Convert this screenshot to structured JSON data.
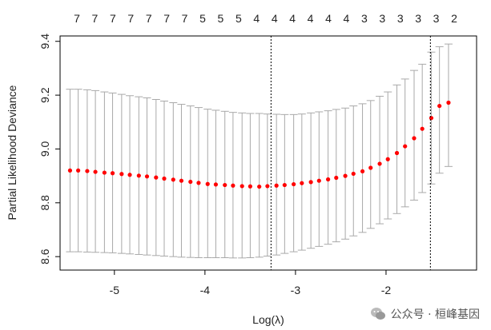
{
  "chart_data": {
    "type": "scatter",
    "title": "",
    "xlabel": "Log(λ)",
    "ylabel": "Partial Likelihood Deviance",
    "xlim": [
      -5.6,
      -1.0
    ],
    "ylim": [
      8.55,
      9.42
    ],
    "x_ticks": [
      -5,
      -4,
      -3,
      -2
    ],
    "x_tick_labels": [
      "-5",
      "-4",
      "-3",
      "-2"
    ],
    "y_ticks": [
      8.6,
      8.8,
      9.0,
      9.2,
      9.4
    ],
    "y_tick_labels": [
      "8.6",
      "8.8",
      "9.0",
      "9.2",
      "9.4"
    ],
    "top_axis_labels": [
      "7",
      "7",
      "7",
      "7",
      "7",
      "7",
      "7",
      "5",
      "5",
      "5",
      "4",
      "4",
      "4",
      "4",
      "4",
      "4",
      "3",
      "3",
      "3",
      "3",
      "3",
      "2"
    ],
    "vlines": [
      -3.27,
      -1.51
    ],
    "point_color": "#ff0000",
    "errorbar_color": "#a9a9a9",
    "series": [
      {
        "x": [
          -5.49,
          -5.4,
          -5.3,
          -5.21,
          -5.11,
          -5.02,
          -4.92,
          -4.83,
          -4.73,
          -4.64,
          -4.54,
          -4.45,
          -4.35,
          -4.26,
          -4.16,
          -4.07,
          -3.97,
          -3.88,
          -3.78,
          -3.69,
          -3.59,
          -3.5,
          -3.4,
          -3.31,
          -3.21,
          -3.12,
          -3.02,
          -2.93,
          -2.83,
          -2.74,
          -2.64,
          -2.55,
          -2.45,
          -2.36,
          -2.26,
          -2.17,
          -2.07,
          -1.98,
          -1.88,
          -1.79,
          -1.69,
          -1.6,
          -1.5,
          -1.41,
          -1.31
        ],
        "y": [
          8.92,
          8.92,
          8.918,
          8.915,
          8.912,
          8.91,
          8.907,
          8.904,
          8.901,
          8.898,
          8.894,
          8.89,
          8.886,
          8.882,
          8.878,
          8.874,
          8.87,
          8.868,
          8.866,
          8.864,
          8.862,
          8.861,
          8.86,
          8.862,
          8.864,
          8.866,
          8.869,
          8.873,
          8.877,
          8.882,
          8.887,
          8.893,
          8.9,
          8.908,
          8.917,
          8.93,
          8.945,
          8.962,
          8.985,
          9.01,
          9.04,
          9.075,
          9.115,
          9.16,
          9.172
        ],
        "lower": [
          8.618,
          8.618,
          8.617,
          8.616,
          8.615,
          8.614,
          8.612,
          8.61,
          8.608,
          8.606,
          8.604,
          8.602,
          8.6,
          8.598,
          8.597,
          8.596,
          8.596,
          8.596,
          8.596,
          8.595,
          8.595,
          8.596,
          8.598,
          8.602,
          8.606,
          8.612,
          8.618,
          8.624,
          8.631,
          8.638,
          8.646,
          8.655,
          8.665,
          8.677,
          8.69,
          8.705,
          8.722,
          8.74,
          8.76,
          8.785,
          8.81,
          8.838,
          8.87,
          8.91,
          8.935
        ],
        "upper": [
          9.222,
          9.222,
          9.22,
          9.217,
          9.212,
          9.208,
          9.203,
          9.198,
          9.194,
          9.19,
          9.184,
          9.178,
          9.172,
          9.166,
          9.16,
          9.154,
          9.148,
          9.144,
          9.14,
          9.136,
          9.134,
          9.132,
          9.132,
          9.13,
          9.129,
          9.128,
          9.128,
          9.13,
          9.134,
          9.138,
          9.142,
          9.147,
          9.152,
          9.16,
          9.168,
          9.18,
          9.196,
          9.212,
          9.238,
          9.26,
          9.292,
          9.315,
          9.36,
          9.38,
          9.39
        ]
      }
    ]
  },
  "watermark": {
    "text": "公众号 · 桓峰基因"
  }
}
